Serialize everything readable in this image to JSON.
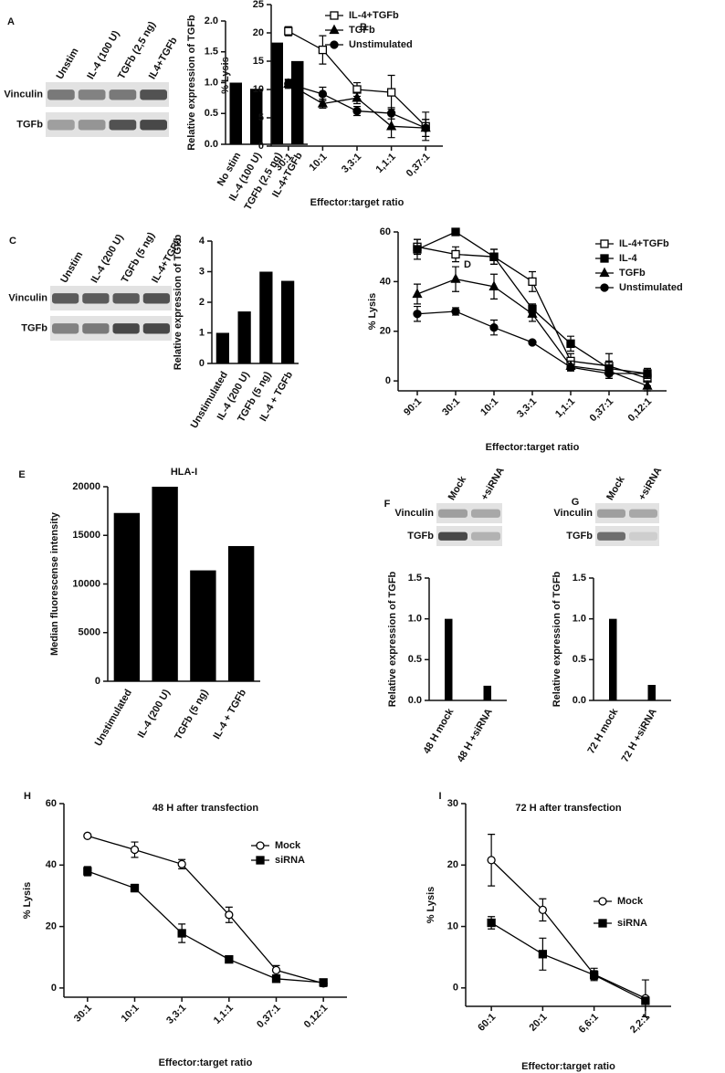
{
  "chart_data": [
    {
      "panel": "A",
      "type": "bar",
      "ylabel": "Relative expression of  TGFb",
      "categories": [
        "No stim",
        "IL-4 (100 U)",
        "TGFb (2,5 ng)",
        "IL-4+TGFb"
      ],
      "values": [
        1.0,
        0.9,
        1.65,
        1.35
      ],
      "color": "#000000",
      "ylim": [
        0,
        2
      ],
      "yticks": [
        {
          "value": 0,
          "label": "0.0"
        },
        0.5,
        {
          "value": 1,
          "label": "1.0"
        },
        1.5,
        {
          "value": 2,
          "label": "2.0"
        }
      ],
      "blot": {
        "lanes": [
          "Unstim",
          "IL-4 (100 U)",
          "TGFb (2,5 ng)",
          "IL4+TGFb"
        ],
        "rows": [
          "Vinculin",
          "TGFb"
        ]
      }
    },
    {
      "panel": "B",
      "type": "line",
      "ylabel": "% Lysis",
      "xlabel": "Effector:target ratio",
      "categories": [
        "30:1",
        "10:1",
        "3,3:1",
        "1,1:1",
        "0,37:1"
      ],
      "series": [
        {
          "name": "IL-4+TGFb",
          "color": "#000000",
          "marker": "open-square",
          "values": [
            20.3,
            17,
            10,
            9.5,
            3.5
          ],
          "errors": [
            0.8,
            2.5,
            1.2,
            3,
            2.5
          ]
        },
        {
          "name": "TGFb",
          "color": "#000000",
          "marker": "triangle",
          "values": [
            11,
            7.5,
            8.5,
            3.5,
            3.2
          ],
          "errors": [
            0.8,
            0.8,
            1,
            2,
            1.5
          ]
        },
        {
          "name": "Unstimulated",
          "color": "#000000",
          "marker": "circle",
          "values": [
            11,
            9.2,
            6.2,
            5.8,
            3.2
          ],
          "errors": [
            0.6,
            1.2,
            0.8,
            1,
            1.5
          ]
        }
      ],
      "ylim": [
        0,
        25
      ],
      "yticks": [
        0,
        5,
        10,
        15,
        20,
        25
      ],
      "legend": "upper right"
    },
    {
      "panel": "C",
      "type": "bar",
      "ylabel": "Relative expression of  TGFb",
      "categories": [
        "Unstimulated",
        "IL-4 (200 U)",
        "TGFb (5 ng)",
        "IL-4 + TGFb"
      ],
      "values": [
        1,
        1.7,
        3,
        2.7
      ],
      "color": "#000000",
      "ylim": [
        0,
        4
      ],
      "yticks": [
        0,
        1,
        2,
        3,
        4
      ],
      "blot": {
        "lanes": [
          "Unstim",
          "IL-4 (200 U)",
          "TGFb (5 ng)",
          "IL-4+TGFb"
        ],
        "rows": [
          "Vinculin",
          "TGFb"
        ]
      }
    },
    {
      "panel": "D",
      "type": "line",
      "ylabel": "% Lysis",
      "xlabel": "Effector:target ratio",
      "categories": [
        "90:1",
        "30:1",
        "10:1",
        "3,3:1",
        "1,1:1",
        "0,37:1",
        "0,12:1"
      ],
      "series": [
        {
          "name": "IL-4+TGFb",
          "color": "#000000",
          "marker": "open-square",
          "values": [
            54,
            51,
            50,
            40,
            8,
            6,
            1
          ],
          "errors": [
            3,
            3,
            3,
            4,
            3,
            5,
            3
          ]
        },
        {
          "name": "IL-4",
          "color": "#000000",
          "marker": "square",
          "values": [
            53,
            60,
            50,
            29,
            15,
            5,
            3
          ],
          "errors": [
            4,
            0.5,
            3,
            2,
            3,
            3,
            2
          ]
        },
        {
          "name": "TGFb",
          "color": "#000000",
          "marker": "triangle",
          "values": [
            35,
            41,
            38,
            27,
            6,
            4,
            -2
          ],
          "errors": [
            4,
            5,
            5,
            3,
            2,
            2,
            2
          ]
        },
        {
          "name": "Unstimulated",
          "color": "#000000",
          "marker": "circle",
          "values": [
            27,
            28,
            21.5,
            15.5,
            5.5,
            3,
            3
          ],
          "errors": [
            3,
            1.5,
            3,
            0.5,
            1,
            2,
            2
          ]
        }
      ],
      "ylim": [
        -4,
        60
      ],
      "yticks": [
        0,
        20,
        40,
        60
      ],
      "legend": "upper right"
    },
    {
      "panel": "E",
      "type": "bar",
      "title": "HLA-I",
      "ylabel": "Median fluorescense intensity",
      "categories": [
        "Unstimulated",
        "IL-4 (200 U)",
        "TGFb (5 ng)",
        "IL-4 + TGFb"
      ],
      "values": [
        17300,
        20000,
        11400,
        13900
      ],
      "color": "#000000",
      "ylim": [
        0,
        20000
      ],
      "yticks": [
        0,
        5000,
        10000,
        15000,
        20000
      ]
    },
    {
      "panel": "F",
      "type": "bar",
      "ylabel": "Relative expression of  TGFb",
      "categories": [
        "48 H mock",
        "48 H +siRNA"
      ],
      "values": [
        1,
        0.18
      ],
      "color": "#000000",
      "ylim": [
        0,
        1.5
      ],
      "yticks": [
        {
          "value": 0,
          "label": "0.0"
        },
        0.5,
        {
          "value": 1,
          "label": "1.0"
        },
        1.5
      ],
      "blot": {
        "lanes": [
          "Mock",
          "+siRNA"
        ],
        "rows": [
          "Vinculin",
          "TGFb"
        ]
      }
    },
    {
      "panel": "G",
      "type": "bar",
      "ylabel": "Relative expression of  TGFb",
      "categories": [
        "72 H mock",
        "72 H +siRNA"
      ],
      "values": [
        1,
        0.19
      ],
      "color": "#000000",
      "ylim": [
        0,
        1.5
      ],
      "yticks": [
        {
          "value": 0,
          "label": "0.0"
        },
        0.5,
        {
          "value": 1,
          "label": "1.0"
        },
        1.5
      ],
      "blot": {
        "lanes": [
          "Mock",
          "+siRNA"
        ],
        "rows": [
          "Vinculin",
          "TGFb"
        ]
      }
    },
    {
      "panel": "H",
      "type": "line",
      "title": "48 H after transfection",
      "ylabel": "% Lysis",
      "xlabel": "Effector:target ratio",
      "categories": [
        "30:1",
        "10:1",
        "3,3:1",
        "1,1:1",
        "0,37:1",
        "0,12:1"
      ],
      "series": [
        {
          "name": "Mock",
          "color": "#000000",
          "marker": "open-circle",
          "values": [
            49.5,
            45,
            40.3,
            23.8,
            5.8,
            1.5
          ],
          "errors": [
            0.5,
            2.5,
            1.5,
            2.5,
            1.5,
            1
          ]
        },
        {
          "name": "siRNA",
          "color": "#000000",
          "marker": "square",
          "values": [
            38,
            32.5,
            17.8,
            9.3,
            3,
            1.8
          ],
          "errors": [
            1.5,
            1.2,
            3,
            0.5,
            0.5,
            1
          ]
        }
      ],
      "ylim": [
        -3,
        60
      ],
      "yticks": [
        0,
        20,
        40,
        60
      ],
      "legend": "upper right"
    },
    {
      "panel": "I",
      "type": "line",
      "title": "72 H after transfection",
      "ylabel": "% Lysis",
      "xlabel": "Effector:target ratio",
      "categories": [
        "60:1",
        "20:1",
        "6,6:1",
        "2,2:1"
      ],
      "series": [
        {
          "name": "Mock",
          "color": "#000000",
          "marker": "open-circle",
          "values": [
            20.8,
            12.7,
            2.2,
            -1.7
          ],
          "errors": [
            4.2,
            1.8,
            1,
            3
          ]
        },
        {
          "name": "siRNA",
          "color": "#000000",
          "marker": "square",
          "values": [
            10.6,
            5.5,
            2.1,
            -2.1
          ],
          "errors": [
            1,
            2.6,
            0.7,
            0.5
          ]
        }
      ],
      "ylim": [
        -3,
        30
      ],
      "yticks": [
        0,
        10,
        20,
        30
      ],
      "legend": "right"
    }
  ]
}
